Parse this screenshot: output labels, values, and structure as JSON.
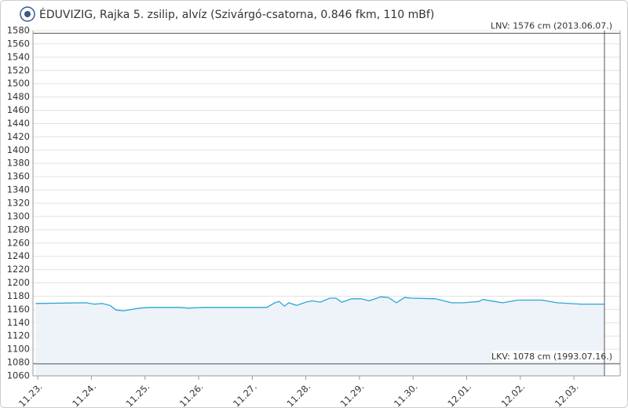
{
  "chart_data": {
    "type": "line",
    "title": "ÉDUVIZIG, Rajka 5. zsilip, alvíz (Szivárgó-csatorna, 0.846 fkm, 110 mBf)",
    "x": [
      -0.04,
      0.9,
      1.05,
      1.2,
      1.35,
      1.46,
      1.6,
      1.75,
      1.9,
      2.08,
      2.66,
      2.8,
      3.1,
      3.69,
      4.27,
      4.42,
      4.5,
      4.6,
      4.68,
      4.83,
      5.0,
      5.12,
      5.27,
      5.45,
      5.56,
      5.67,
      5.86,
      6.03,
      6.18,
      6.4,
      6.54,
      6.69,
      6.84,
      6.98,
      7.42,
      7.72,
      7.94,
      8.23,
      8.3,
      8.67,
      8.96,
      9.4,
      9.69,
      10.13,
      10.57
    ],
    "series": [
      {
        "color": "#2aa6d5",
        "values": [
          1169,
          1170,
          1168,
          1169,
          1166,
          1159,
          1158,
          1160,
          1162,
          1163,
          1163,
          1162,
          1163,
          1163,
          1163,
          1170,
          1172,
          1165,
          1170,
          1166,
          1171,
          1173,
          1171,
          1177,
          1177,
          1171,
          1176,
          1176,
          1173,
          1179,
          1178,
          1170,
          1178,
          1177,
          1176,
          1170,
          1170,
          1172,
          1175,
          1170,
          1174,
          1174,
          1170,
          1168,
          1168
        ]
      }
    ],
    "xlim": [
      -0.09,
      10.57
    ],
    "xticks": [
      {
        "value": 0,
        "label": "11.23."
      },
      {
        "value": 1,
        "label": "11.24."
      },
      {
        "value": 2,
        "label": "11.25."
      },
      {
        "value": 3,
        "label": "11.26."
      },
      {
        "value": 4,
        "label": "11.27."
      },
      {
        "value": 5,
        "label": "11.28."
      },
      {
        "value": 6,
        "label": "11.29."
      },
      {
        "value": 7,
        "label": "11.30."
      },
      {
        "value": 8,
        "label": "12.01."
      },
      {
        "value": 9,
        "label": "12.02."
      },
      {
        "value": 10,
        "label": "12.03."
      }
    ],
    "ylim": [
      1060,
      1580
    ],
    "yticks": [
      1060,
      1080,
      1100,
      1120,
      1140,
      1160,
      1180,
      1200,
      1220,
      1240,
      1260,
      1280,
      1300,
      1320,
      1340,
      1360,
      1380,
      1400,
      1420,
      1440,
      1460,
      1480,
      1500,
      1520,
      1540,
      1560,
      1580
    ],
    "grid": true,
    "reference_lines": [
      {
        "value": 1576,
        "label": "LNV: 1576 cm (2013.06.07.)"
      },
      {
        "value": 1078,
        "label": "LKV: 1078 cm (1993.07.16.)"
      }
    ]
  }
}
